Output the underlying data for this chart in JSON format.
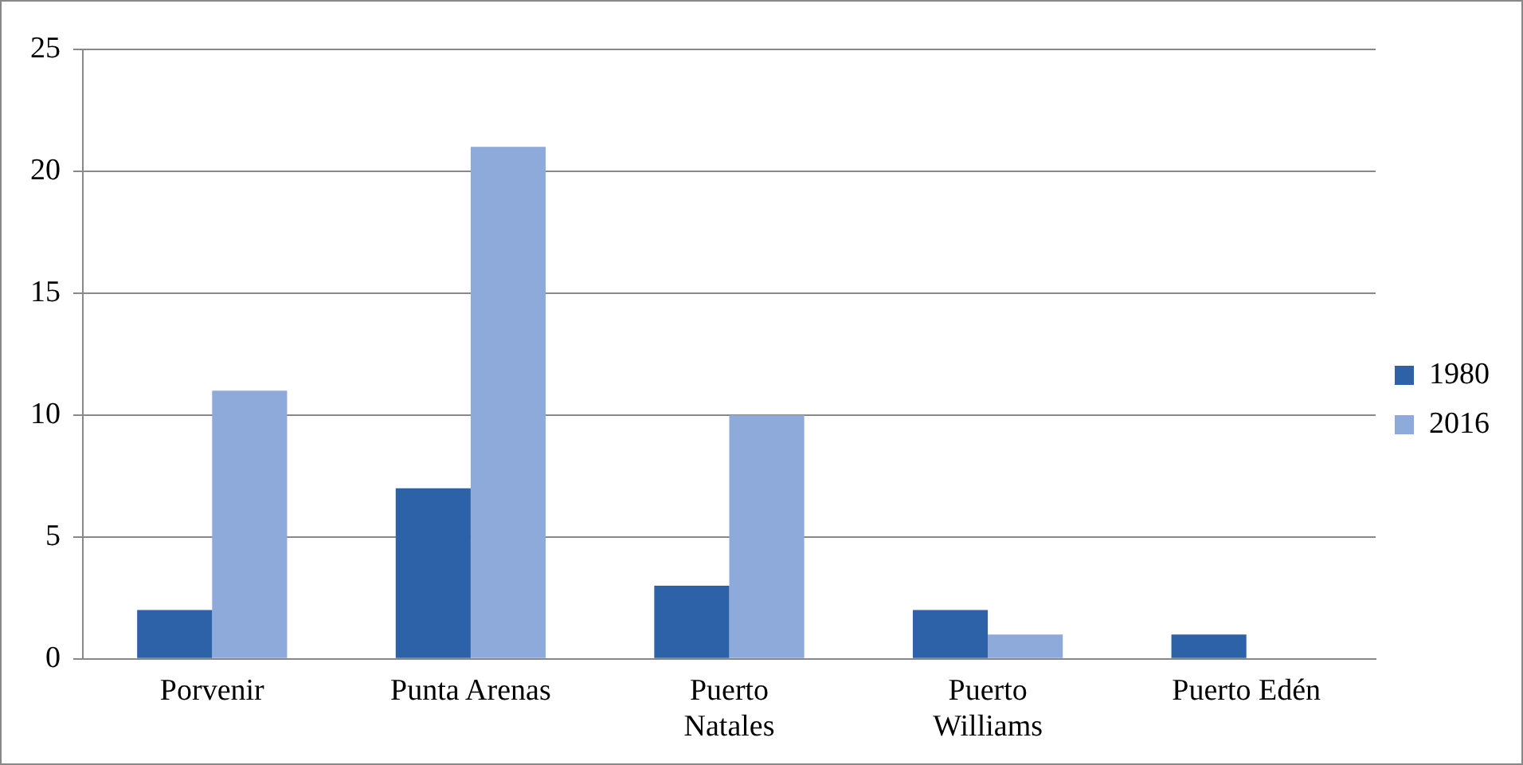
{
  "chart_data": {
    "type": "bar",
    "categories": [
      "Porvenir",
      "Punta Arenas",
      "Puerto\nNatales",
      "Puerto\nWilliams",
      "Puerto Edén"
    ],
    "series": [
      {
        "name": "1980",
        "color": "#2e62a8",
        "values": [
          2,
          7,
          3,
          2,
          1
        ]
      },
      {
        "name": "2016",
        "color": "#8eaadb",
        "values": [
          11,
          21,
          10,
          1,
          0
        ]
      }
    ],
    "ylim": [
      0,
      25
    ],
    "yticks": [
      0,
      5,
      10,
      15,
      20,
      25
    ],
    "grid": "y",
    "legend": "right"
  }
}
